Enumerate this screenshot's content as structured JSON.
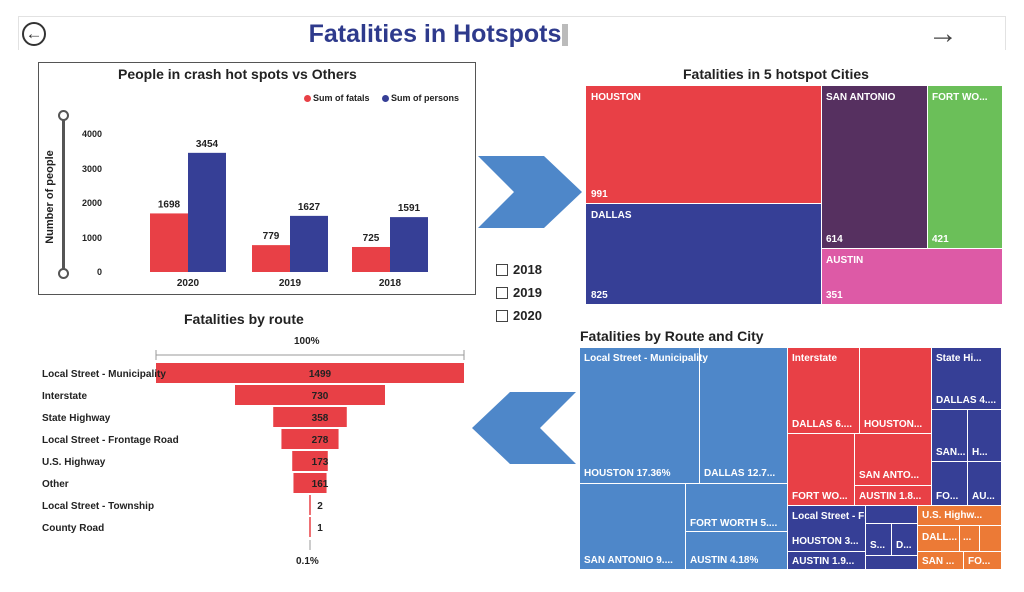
{
  "header": {
    "title": "Fatalities in Hotspots",
    "back_icon": "back-arrow-icon",
    "next_icon": "forward-arrow-icon"
  },
  "colors": {
    "red": "#e84046",
    "blue": "#363f96",
    "purple": "#563060",
    "green": "#6bbf59",
    "pink": "#dd5aa6",
    "lightblue": "#4e87c9",
    "orange": "#ec7a36",
    "title": "#2e3a8c"
  },
  "bar_chart": {
    "title": "People in crash hot spots vs Others",
    "legend": [
      "Sum of fatals",
      "Sum of persons"
    ],
    "ylabel": "Number of people",
    "yticks": [
      "0",
      "1000",
      "2000",
      "3000",
      "4000"
    ]
  },
  "chart_data": [
    {
      "type": "bar",
      "title": "People in crash hot spots vs Others",
      "categories": [
        "2020",
        "2019",
        "2018"
      ],
      "series": [
        {
          "name": "Sum of fatals",
          "values": [
            1698,
            779,
            725
          ]
        },
        {
          "name": "Sum of persons",
          "values": [
            3454,
            1627,
            1591
          ]
        }
      ],
      "ylabel": "Number of people",
      "ylim": [
        0,
        4000
      ]
    },
    {
      "type": "bar",
      "title": "Fatalities by route",
      "categories": [
        "Local Street - Municipality",
        "Interstate",
        "State Highway",
        "Local Street - Frontage Road",
        "U.S. Highway",
        "Other",
        "Local Street - Township",
        "County Road"
      ],
      "values": [
        1499,
        730,
        358,
        278,
        173,
        161,
        2,
        1
      ]
    }
  ],
  "years": [
    "2018",
    "2019",
    "2020"
  ],
  "cities_treemap": {
    "title": "Fatalities in 5 hotspot Cities",
    "tiles": [
      {
        "name": "HOUSTON",
        "value": "991"
      },
      {
        "name": "DALLAS",
        "value": "825"
      },
      {
        "name": "SAN ANTONIO",
        "value": "614"
      },
      {
        "name": "FORT WO...",
        "value": "421"
      },
      {
        "name": "AUSTIN",
        "value": "351"
      }
    ]
  },
  "funnel": {
    "title": "Fatalities by route",
    "top_pct": "100%",
    "bottom_pct": "0.1%"
  },
  "route_city": {
    "title": "Fatalities by Route and City",
    "labels": {
      "lsm": "Local Street - Municipality",
      "lsm_houston": "HOUSTON 17.36%",
      "lsm_dallas": "DALLAS 12.7...",
      "lsm_fw": "FORT WORTH 5....",
      "lsm_sa": "SAN ANTONIO 9....",
      "lsm_austin": "AUSTIN 4.18%",
      "inter": "Interstate",
      "inter_dallas": "DALLAS 6....",
      "inter_houston": "HOUSTON...",
      "inter_sa": "SAN ANTO...",
      "inter_fw": "FORT WO...",
      "inter_austin": "AUSTIN 1.8...",
      "sh": "State Hi...",
      "sh_dallas": "DALLAS 4....",
      "sh_san": "SAN...",
      "sh_h": "H...",
      "sh_fo": "FO...",
      "sh_au": "AU...",
      "lsf": "Local Street - Front...",
      "lsf_houston": "HOUSTON 3...",
      "lsf_s": "S...",
      "lsf_d": "D...",
      "lsf_austin": "AUSTIN 1.9...",
      "us": "U.S. Highw...",
      "us_dall": "DALL...",
      "us_dots": "...",
      "us_san": "SAN ...",
      "us_fo": "FO..."
    }
  }
}
